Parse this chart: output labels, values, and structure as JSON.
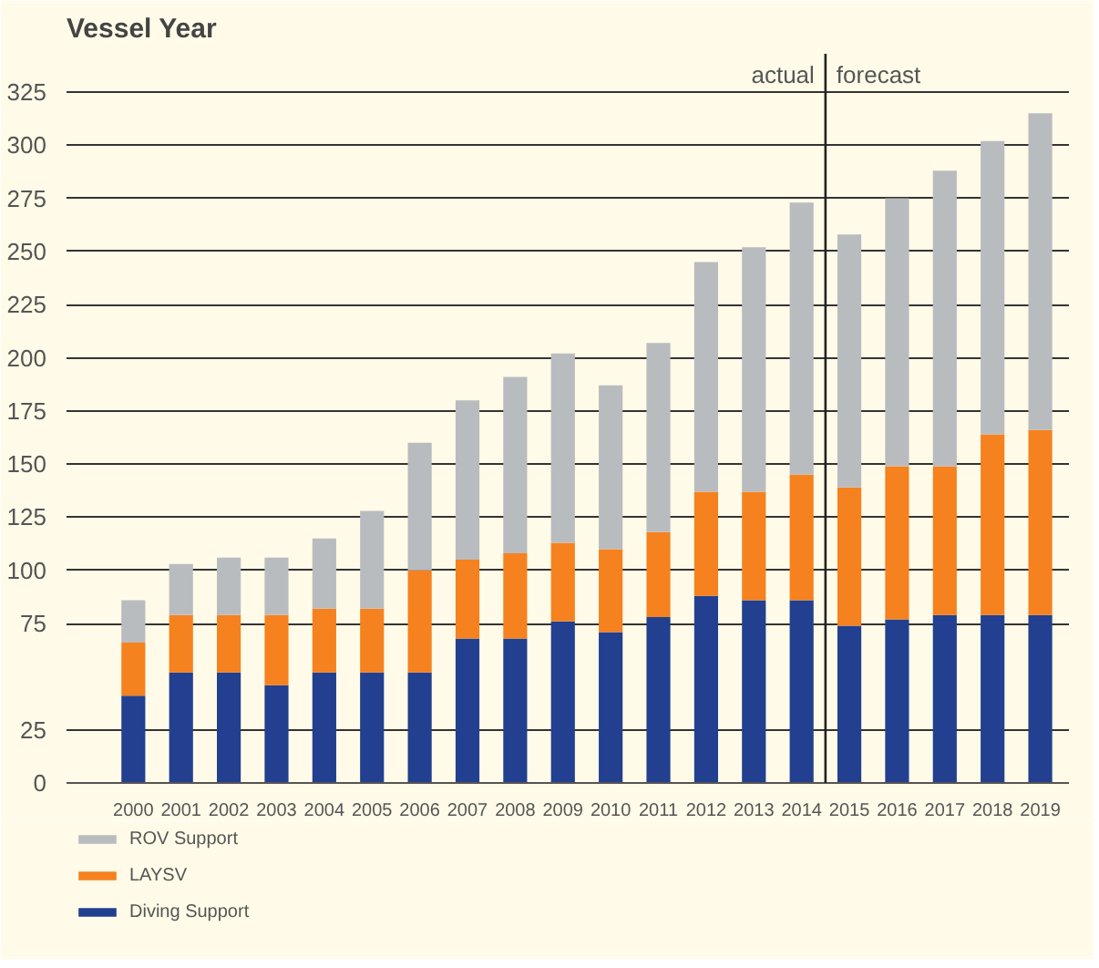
{
  "chart_data": {
    "type": "bar",
    "title": "Vessel Year",
    "stacked": true,
    "x": [
      2000,
      2001,
      2002,
      2003,
      2004,
      2005,
      2006,
      2007,
      2008,
      2009,
      2010,
      2011,
      2012,
      2013,
      2014,
      2015,
      2016,
      2017,
      2018,
      2019
    ],
    "series": [
      {
        "name": "Diving Support",
        "color": "#22408f",
        "values": [
          41,
          52,
          52,
          46,
          52,
          52,
          52,
          68,
          68,
          76,
          71,
          78,
          88,
          86,
          86,
          74,
          77,
          79,
          79,
          79
        ]
      },
      {
        "name": "LAYSV",
        "color": "#f5821f",
        "values": [
          25,
          27,
          27,
          33,
          30,
          30,
          48,
          37,
          40,
          37,
          39,
          40,
          49,
          51,
          59,
          65,
          72,
          70,
          85,
          87
        ]
      },
      {
        "name": "ROV Support",
        "color": "#b9bcbf",
        "values": [
          20,
          24,
          27,
          27,
          33,
          46,
          60,
          75,
          83,
          89,
          77,
          89,
          108,
          115,
          128,
          119,
          126,
          139,
          138,
          149
        ]
      }
    ],
    "xlim": [
      1998.6,
      2019.6
    ],
    "xticks": [
      2000,
      2001,
      2002,
      2003,
      2004,
      2005,
      2006,
      2007,
      2008,
      2009,
      2010,
      2011,
      2012,
      2013,
      2014,
      2015,
      2016,
      2017,
      2018,
      2019
    ],
    "ylim": [
      0,
      343
    ],
    "yticks": [
      0,
      25,
      75,
      100,
      125,
      150,
      175,
      200,
      225,
      250,
      275,
      300,
      325
    ],
    "ref_lines": [
      {
        "axis": "x",
        "value": 2014.5
      }
    ],
    "annotations": [
      {
        "text": "actual",
        "x": 2014.5,
        "y": 325
      },
      {
        "text": "forecast",
        "x": 2014.5,
        "y": 325
      }
    ],
    "grid": "y",
    "legend": "bottom"
  }
}
